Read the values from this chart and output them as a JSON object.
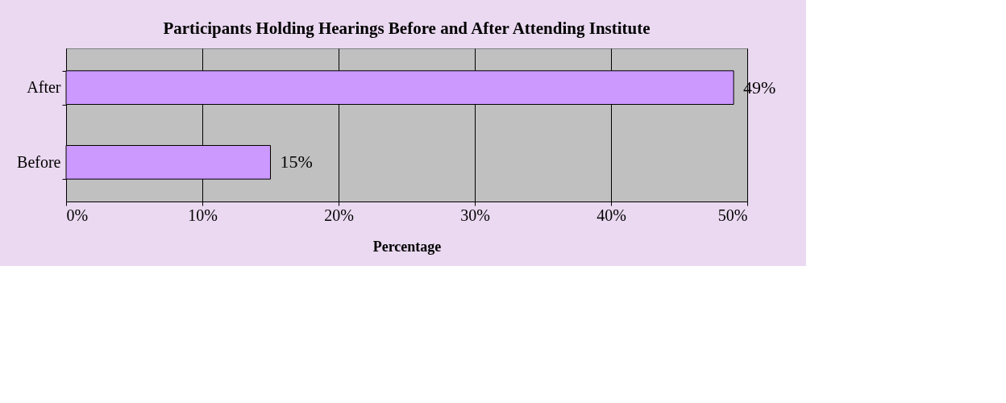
{
  "chart_data": {
    "type": "bar",
    "orientation": "horizontal",
    "title": "Participants Holding Hearings Before and After Attending Institute",
    "xlabel": "Percentage",
    "categories": [
      "After",
      "Before"
    ],
    "values": [
      49,
      15
    ],
    "color": "#cc99ff",
    "value_labels": [
      "49%",
      "15%"
    ],
    "xlim": [
      0,
      50
    ],
    "xticks": [
      {
        "value": 0,
        "label": "0%"
      },
      {
        "value": 10,
        "label": "10%"
      },
      {
        "value": 20,
        "label": "20%"
      },
      {
        "value": 30,
        "label": "30%"
      },
      {
        "value": 40,
        "label": "40%"
      },
      {
        "value": 50,
        "label": "50%"
      }
    ],
    "grid": "x"
  }
}
